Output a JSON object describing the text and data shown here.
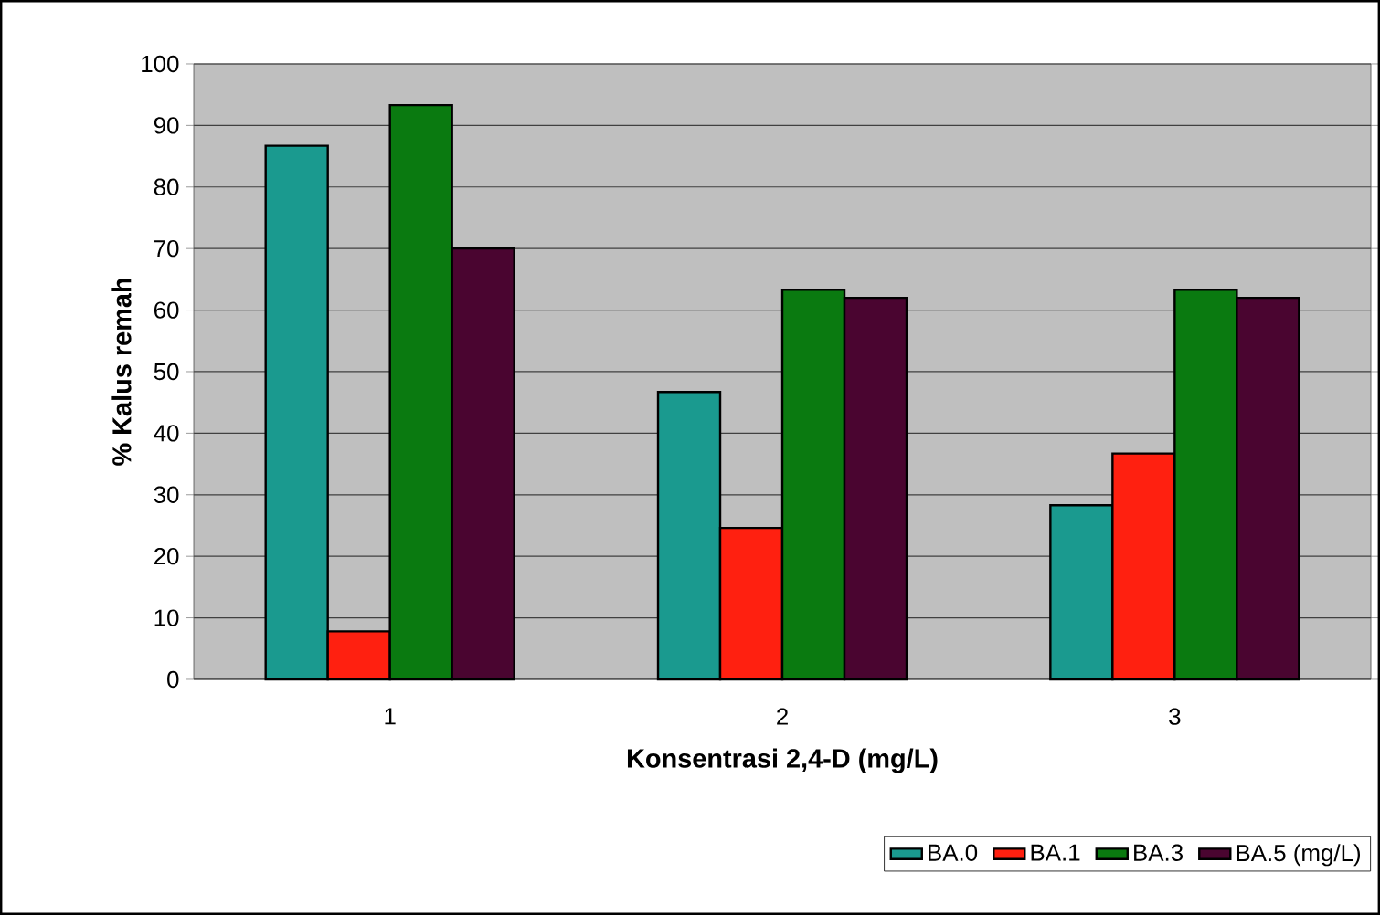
{
  "chart_data": {
    "type": "bar",
    "xlabel": "Konsentrasi 2,4-D (mg/L)",
    "ylabel": "% Kalus remah",
    "categories": [
      "1",
      "2",
      "3"
    ],
    "series": [
      {
        "name": "BA.0",
        "color": "#1a9a8f",
        "values": [
          86.7,
          46.7,
          28.3
        ]
      },
      {
        "name": "BA.1",
        "color": "#ff2010",
        "values": [
          7.8,
          24.6,
          36.7
        ]
      },
      {
        "name": "BA.3",
        "color": "#0a7a10",
        "values": [
          93.3,
          63.3,
          63.3
        ]
      },
      {
        "name": "BA.5 (mg/L)",
        "color": "#4a0530",
        "values": [
          70,
          62,
          62
        ]
      }
    ],
    "ylim": [
      0,
      100
    ],
    "yticks": [
      0,
      10,
      20,
      30,
      40,
      50,
      60,
      70,
      80,
      90,
      100
    ],
    "grid": "y",
    "legend": "bottom"
  }
}
